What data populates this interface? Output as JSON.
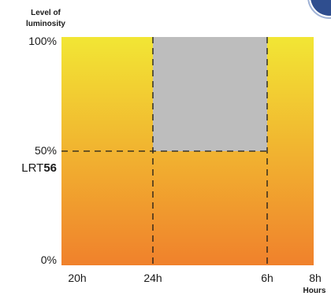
{
  "chart_data": {
    "type": "area",
    "ylabel_lines": [
      "Level of",
      "luminosity"
    ],
    "xlabel": "Hours",
    "x_ticks": [
      "20h",
      "24h",
      "6h",
      "8h"
    ],
    "y_ticks": [
      "0%",
      "50%",
      "100%"
    ],
    "ylim": [
      0,
      100
    ],
    "series_label_prefix": "LRT",
    "series_label_strong": "56",
    "segments": [
      {
        "from": "20h",
        "to": "24h",
        "level": 100
      },
      {
        "from": "24h",
        "to": "6h",
        "level": 50
      },
      {
        "from": "6h",
        "to": "8h",
        "level": 100
      }
    ],
    "reduced_level": 50,
    "reduced_window": [
      "24h",
      "6h"
    ],
    "colors": {
      "gradient_top": "#F2E634",
      "gradient_bottom": "#F0812C",
      "dimmed": "#BDBDBD",
      "guide": "#1a1a1a"
    }
  }
}
